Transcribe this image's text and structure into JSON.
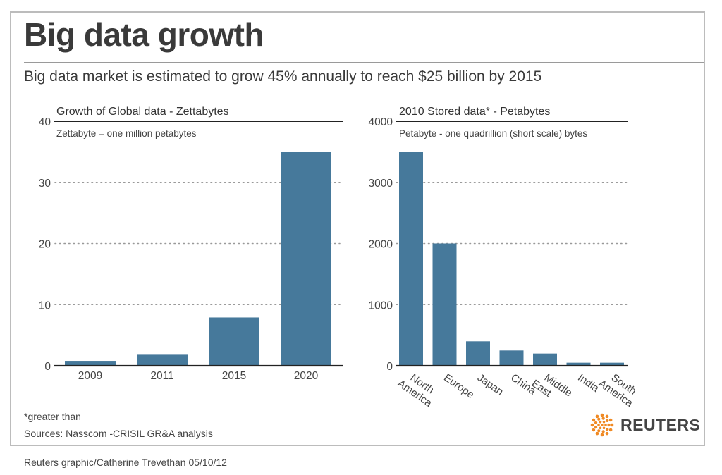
{
  "header": {
    "title": "Big data growth",
    "subtitle": "Big data market is estimated to grow 45% annually to reach $25 billion by 2015"
  },
  "footer": {
    "note": "*greater than",
    "sources": "Sources: Nasscom -CRISIL GR&A analysis",
    "credit": "Reuters graphic/Catherine Trevethan    05/10/12",
    "logo_text": "REUTERS",
    "logo_icon": "reuters-dot-logo-icon",
    "logo_color": "#f08a24"
  },
  "colors": {
    "bar": "#46799b",
    "grid": "#999999",
    "axis": "#222222"
  },
  "chart_data": [
    {
      "type": "bar",
      "title": "Growth of Global data - Zettabytes",
      "subtitle": "Zettabyte = one million petabytes",
      "categories": [
        "2009",
        "2011",
        "2015",
        "2020"
      ],
      "values": [
        0.8,
        1.8,
        7.9,
        35
      ],
      "yticks": [
        0,
        10,
        20,
        30,
        40
      ],
      "ylim": [
        0,
        40
      ],
      "grid": true
    },
    {
      "type": "bar",
      "title": "2010 Stored data* - Petabytes",
      "subtitle": "Petabyte - one quadrillion (short scale) bytes",
      "categories": [
        "North America",
        "Europe",
        "Japan",
        "China",
        "Middle East",
        "India",
        "South America"
      ],
      "category_lines": [
        [
          "North",
          "America"
        ],
        [
          "Europe"
        ],
        [
          "Japan"
        ],
        [
          "China"
        ],
        [
          "Middle",
          "East"
        ],
        [
          "India"
        ],
        [
          "South",
          "America"
        ]
      ],
      "values": [
        3500,
        2000,
        400,
        250,
        200,
        50,
        50
      ],
      "yticks": [
        0,
        1000,
        2000,
        3000,
        4000
      ],
      "ylim": [
        0,
        4000
      ],
      "grid": true
    }
  ]
}
